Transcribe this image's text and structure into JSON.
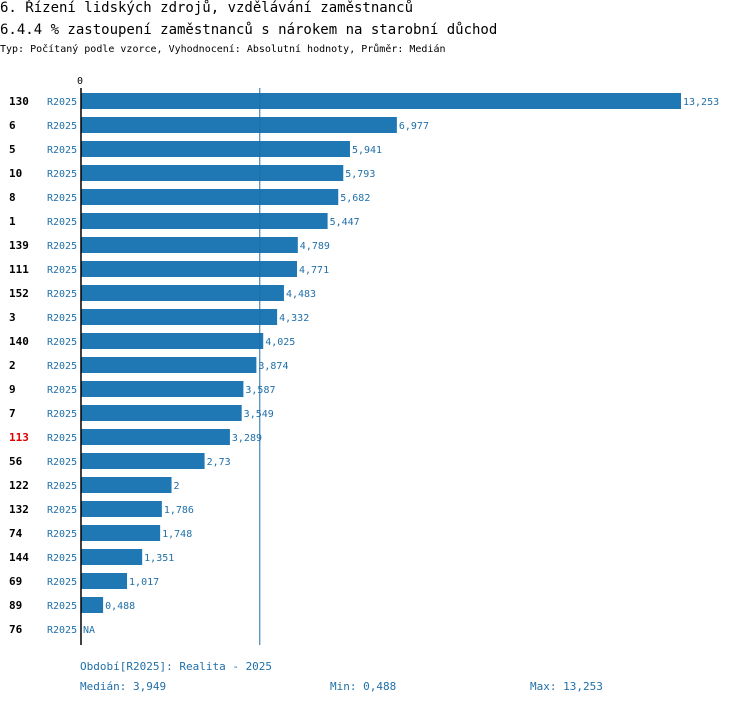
{
  "header": {
    "section": "6. Řízení lidských zdrojů, vzdělávání zaměstnanců",
    "indicator": "6.4.4 % zastoupení zaměstnanců s nárokem na starobní důchod",
    "meta": "Typ: Počítaný podle vzorce, Vyhodnocení: Absolutní hodnoty, Průměr: Medián"
  },
  "chart_data": {
    "type": "bar",
    "orientation": "horizontal",
    "axis_zero_label": "0",
    "xlim": [
      0,
      13.253
    ],
    "median": 3.949,
    "highlight_category": "113",
    "series_label": "R2025",
    "categories": [
      "130",
      "6",
      "5",
      "10",
      "8",
      "1",
      "139",
      "111",
      "152",
      "3",
      "140",
      "2",
      "9",
      "7",
      "113",
      "56",
      "122",
      "132",
      "74",
      "144",
      "69",
      "89",
      "76"
    ],
    "values": [
      13.253,
      6.977,
      5.941,
      5.793,
      5.682,
      5.447,
      4.789,
      4.771,
      4.483,
      4.332,
      4.025,
      3.874,
      3.587,
      3.549,
      3.289,
      2.73,
      2,
      1.786,
      1.748,
      1.351,
      1.017,
      0.488,
      null
    ],
    "value_labels": [
      "13,253",
      "6,977",
      "5,941",
      "5,793",
      "5,682",
      "5,447",
      "4,789",
      "4,771",
      "4,483",
      "4,332",
      "4,025",
      "3,874",
      "3,587",
      "3,549",
      "3,289",
      "2,73",
      "2",
      "1,786",
      "1,748",
      "1,351",
      "1,017",
      "0,488",
      "NA"
    ],
    "colors": {
      "bar": "#1f77b4",
      "label": "#1f6fa8",
      "highlight": "#e00000",
      "median_line": "#1f6fa8"
    }
  },
  "footer": {
    "period": "Období[R2025]: Realita - 2025",
    "median": "Medián: 3,949",
    "min": "Min: 0,488",
    "max": "Max: 13,253"
  }
}
